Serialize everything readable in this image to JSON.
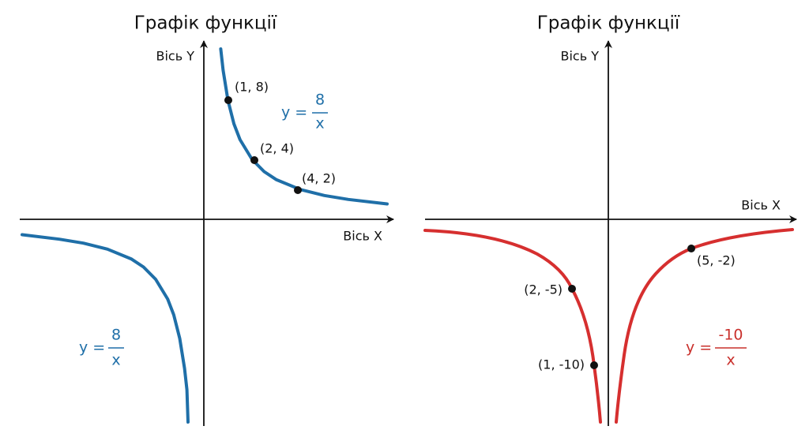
{
  "panels": [
    {
      "title": "Графік функції",
      "y_axis_label": "Вісь Y",
      "x_axis_label": "Вісь X",
      "formulas": [
        {
          "lhs": "y =",
          "numerator": "8",
          "denominator": "x"
        },
        {
          "lhs": "y =",
          "numerator": "8",
          "denominator": "x"
        }
      ],
      "points": [
        "(1, 8)",
        "(2, 4)",
        "(4, 2)"
      ]
    },
    {
      "title": "Графік функції",
      "y_axis_label": "Вісь Y",
      "x_axis_label": "Вісь X",
      "formulas": [
        {
          "lhs": "y =",
          "numerator": "-10",
          "denominator": "x"
        }
      ],
      "points": [
        "(2, -5)",
        "(1, -10)",
        "(5, -2)"
      ]
    }
  ]
}
